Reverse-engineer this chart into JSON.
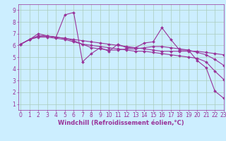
{
  "background_color": "#cceeff",
  "grid_color": "#aaccbb",
  "line_color": "#993399",
  "marker": "D",
  "marker_size": 2.0,
  "line_width": 0.8,
  "xlim": [
    -0.3,
    23
  ],
  "ylim": [
    0.5,
    9.5
  ],
  "yticks": [
    1,
    2,
    3,
    4,
    5,
    6,
    7,
    8,
    9
  ],
  "xticks": [
    0,
    1,
    2,
    3,
    4,
    5,
    6,
    7,
    8,
    9,
    10,
    11,
    12,
    13,
    14,
    15,
    16,
    17,
    18,
    19,
    20,
    21,
    22,
    23
  ],
  "xlabel": "Windchill (Refroidissement éolien,°C)",
  "xlabel_fontsize": 6.0,
  "tick_fontsize": 5.5,
  "series": [
    [
      6.1,
      6.5,
      7.0,
      6.8,
      6.7,
      8.6,
      8.8,
      4.6,
      5.3,
      5.8,
      5.5,
      6.1,
      5.8,
      5.8,
      6.2,
      6.3,
      7.5,
      6.5,
      5.6,
      5.6,
      4.7,
      4.1,
      2.1,
      1.5
    ],
    [
      6.1,
      6.5,
      6.7,
      6.7,
      6.6,
      6.5,
      6.3,
      6.1,
      6.0,
      5.9,
      5.8,
      5.7,
      5.6,
      5.5,
      5.5,
      5.4,
      5.3,
      5.2,
      5.1,
      5.0,
      4.9,
      4.6,
      3.8,
      3.1
    ],
    [
      6.1,
      6.5,
      6.8,
      6.8,
      6.7,
      6.6,
      6.5,
      6.4,
      6.3,
      6.2,
      6.1,
      6.0,
      5.9,
      5.8,
      5.7,
      5.6,
      5.5,
      5.5,
      5.5,
      5.5,
      5.5,
      5.4,
      5.3,
      5.2
    ],
    [
      6.1,
      6.5,
      6.8,
      6.8,
      6.7,
      6.6,
      6.4,
      6.1,
      5.8,
      5.7,
      5.6,
      5.6,
      5.7,
      5.7,
      5.8,
      5.9,
      5.9,
      5.8,
      5.7,
      5.6,
      5.4,
      5.2,
      4.8,
      4.3
    ]
  ]
}
